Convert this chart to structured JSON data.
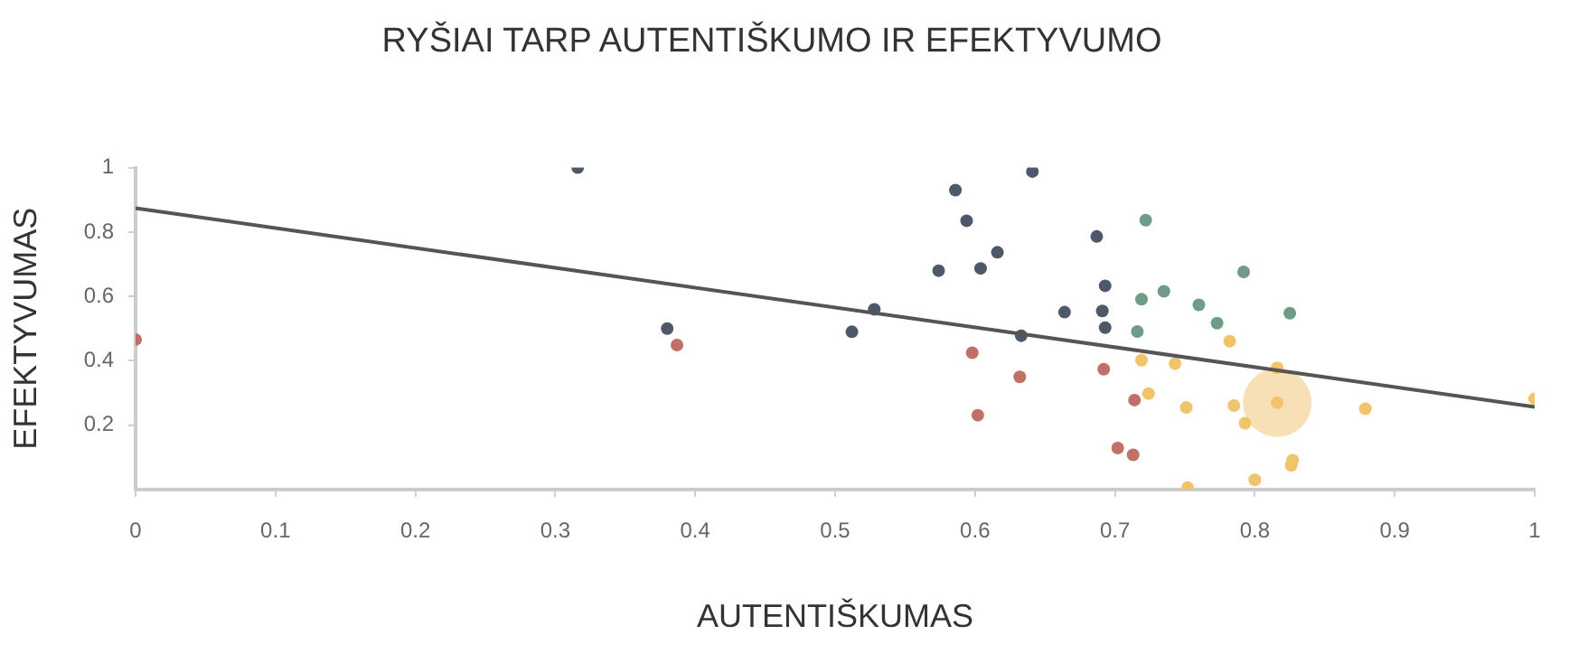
{
  "chart_data": {
    "type": "scatter",
    "title": "RYŠIAI TARP AUTENTIŠKUMO IR EFEKTYVUMO",
    "xlabel": "AUTENTIŠKUMAS",
    "ylabel": "EFEKTYVUMAS",
    "xlim": [
      0,
      1
    ],
    "xticks": [
      0,
      0.1,
      0.2,
      0.3,
      0.4,
      0.5,
      0.6,
      0.7,
      0.8,
      0.9,
      1
    ],
    "ylim": [
      0,
      1
    ],
    "yticks": [
      0.2,
      0.4,
      0.6,
      0.8,
      1
    ],
    "grid": false,
    "legend": false,
    "marker": "circle",
    "series": [
      {
        "color": "#4d5868",
        "x": [
          0.316,
          0.38,
          0.512,
          0.528,
          0.574,
          0.586,
          0.594,
          0.604,
          0.616,
          0.641,
          0.633,
          0.687,
          0.693,
          0.664,
          0.691,
          0.693
        ],
        "values": [
          1.0,
          0.5,
          0.49,
          0.56,
          0.68,
          0.93,
          0.835,
          0.687,
          0.737,
          0.988,
          0.478,
          0.786,
          0.633,
          0.551,
          0.555,
          0.503
        ]
      },
      {
        "color": "#6f9c86",
        "x": [
          0.722,
          0.792,
          0.735,
          0.719,
          0.76,
          0.773,
          0.825,
          0.716
        ],
        "values": [
          0.837,
          0.676,
          0.616,
          0.591,
          0.574,
          0.517,
          0.548,
          0.491
        ]
      },
      {
        "color": "#c26f66",
        "x": [
          0,
          0.387,
          0.598,
          0.602,
          0.632,
          0.692,
          0.714,
          0.702,
          0.713
        ],
        "values": [
          0.466,
          0.449,
          0.425,
          0.231,
          0.35,
          0.374,
          0.278,
          0.129,
          0.108
        ]
      },
      {
        "color": "#f2c46a",
        "x": [
          0.782,
          0.719,
          0.743,
          0.724,
          0.751,
          0.785,
          0.793,
          0.816,
          0.816,
          0.879,
          1.0,
          0.827,
          0.826,
          0.8,
          0.752
        ],
        "values": [
          0.461,
          0.402,
          0.391,
          0.298,
          0.255,
          0.261,
          0.206,
          0.378,
          0.27,
          0.251,
          0.282,
          0.091,
          0.075,
          0.03,
          0.006
        ]
      },
      {
        "type": "bubble",
        "color": "#f7e0b5",
        "x": [
          0.816
        ],
        "values": [
          0.27
        ],
        "sizes": [
          1
        ]
      },
      {
        "type": "line",
        "color": "#555555",
        "x": [
          0,
          1
        ],
        "values": [
          0.874,
          0.257
        ],
        "line_style": "solid",
        "marker": "none"
      }
    ]
  }
}
